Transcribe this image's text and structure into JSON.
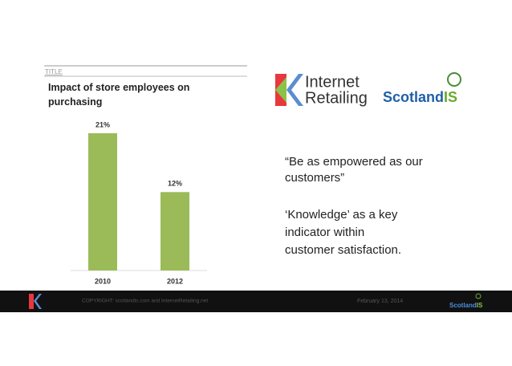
{
  "header": {
    "label": "TITLE"
  },
  "chart_data": {
    "type": "bar",
    "title": "Impact of store employees on purchasing",
    "categories": [
      "2010",
      "2012"
    ],
    "values": [
      21,
      12
    ],
    "value_labels": [
      "21%",
      "12%"
    ],
    "color": "#9bbb59"
  },
  "logos": {
    "brand_line1": "Internet",
    "brand_line2": "Retailing",
    "partner_main": "Scotland",
    "partner_suffix": "IS"
  },
  "quote": {
    "line1": "“Be as empowered as our",
    "line2": "customers”",
    "line3": "‘Knowledge’ as a key",
    "line4": "indicator within",
    "line5": "customer satisfaction."
  },
  "footer": {
    "copyright": "COPYRIGHT: scotlandis.com and InternetRetailing.net",
    "date": "February 13, 2014",
    "mini_logo": "Scotland",
    "mini_logo_suffix": "IS"
  }
}
